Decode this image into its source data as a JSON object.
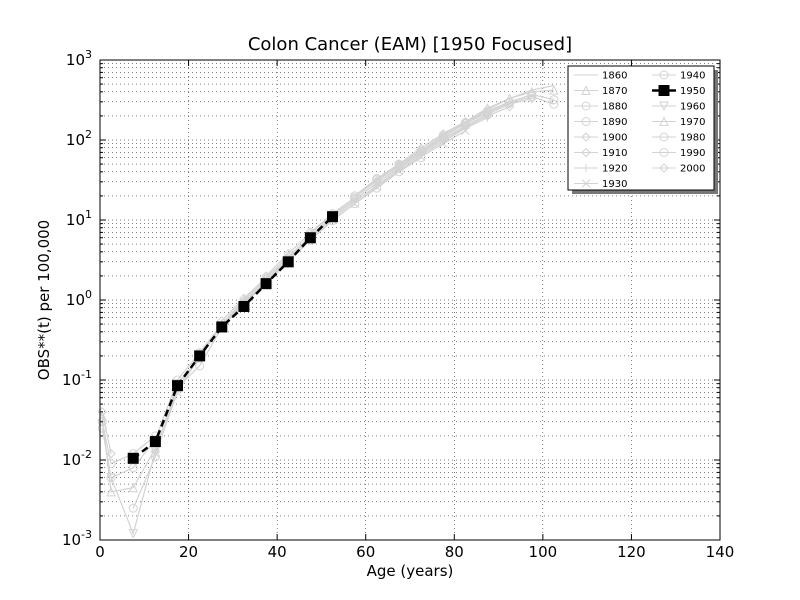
{
  "chart_data": {
    "type": "line",
    "title": "Colon Cancer (EAM) [1950 Focused]",
    "xlabel": "Age (years)",
    "ylabel": "OBS**(t) per 100,000",
    "xlim": [
      0,
      140
    ],
    "ylim": [
      0.001,
      1000
    ],
    "yscale": "log",
    "grid": true,
    "legend_position": "top-right",
    "x_ticks": [
      "0",
      "20",
      "40",
      "60",
      "80",
      "100",
      "120",
      "140"
    ],
    "y_ticks": [
      {
        "base": "10",
        "exp": "-3"
      },
      {
        "base": "10",
        "exp": "-2"
      },
      {
        "base": "10",
        "exp": "-1"
      },
      {
        "base": "10",
        "exp": "0"
      },
      {
        "base": "10",
        "exp": "1"
      },
      {
        "base": "10",
        "exp": "2"
      },
      {
        "base": "10",
        "exp": "3"
      }
    ],
    "focus_color": "#000000",
    "background_color": "#d3d3d3",
    "series": [
      {
        "name": "1860",
        "focused": false,
        "x": [
          77.5,
          82.5,
          87.5,
          92.5,
          97.5,
          102.5
        ],
        "y": [
          120,
          170,
          240,
          330,
          420,
          480
        ]
      },
      {
        "name": "1870",
        "focused": false,
        "x": [
          67.5,
          72.5,
          77.5,
          82.5,
          87.5,
          92.5,
          97.5,
          102.5
        ],
        "y": [
          50,
          80,
          120,
          170,
          250,
          330,
          400,
          420
        ]
      },
      {
        "name": "1880",
        "focused": false,
        "x": [
          57.5,
          62.5,
          67.5,
          72.5,
          77.5,
          82.5,
          87.5,
          92.5,
          97.5,
          102.5
        ],
        "y": [
          20,
          33,
          50,
          75,
          115,
          165,
          230,
          300,
          370,
          320
        ]
      },
      {
        "name": "1890",
        "focused": false,
        "x": [
          47.5,
          52.5,
          57.5,
          62.5,
          67.5,
          72.5,
          77.5,
          82.5,
          87.5,
          92.5,
          97.5,
          102.5
        ],
        "y": [
          7.0,
          12,
          19,
          32,
          48,
          72,
          110,
          160,
          220,
          290,
          350,
          280
        ]
      },
      {
        "name": "1900",
        "focused": false,
        "x": [
          37.5,
          42.5,
          47.5,
          52.5,
          57.5,
          62.5,
          67.5,
          72.5,
          77.5,
          82.5,
          87.5,
          92.5,
          97.5
        ],
        "y": [
          2.0,
          3.8,
          6.8,
          11.5,
          19,
          31,
          47,
          70,
          105,
          150,
          210,
          280,
          330
        ]
      },
      {
        "name": "1910",
        "focused": false,
        "x": [
          27.5,
          32.5,
          37.5,
          42.5,
          47.5,
          52.5,
          57.5,
          62.5,
          67.5,
          72.5,
          77.5,
          82.5,
          87.5,
          92.5
        ],
        "y": [
          0.55,
          1.05,
          1.9,
          3.5,
          6.3,
          11,
          18,
          29,
          45,
          68,
          100,
          145,
          200,
          260
        ]
      },
      {
        "name": "1920",
        "focused": false,
        "x": [
          22.5,
          27.5,
          32.5,
          37.5,
          42.5,
          47.5,
          52.5,
          57.5,
          62.5,
          67.5,
          72.5,
          77.5,
          82.5,
          87.5
        ],
        "y": [
          0.22,
          0.5,
          1.0,
          1.8,
          3.3,
          6.0,
          10.5,
          17,
          27,
          43,
          65,
          95,
          140,
          190
        ]
      },
      {
        "name": "1930",
        "focused": false,
        "x": [
          12.5,
          17.5,
          22.5,
          27.5,
          32.5,
          37.5,
          42.5,
          47.5,
          52.5,
          57.5,
          62.5,
          67.5,
          72.5,
          77.5,
          82.5
        ],
        "y": [
          0.012,
          0.07,
          0.2,
          0.48,
          0.95,
          1.7,
          3.1,
          5.7,
          10,
          16,
          26,
          41,
          62,
          90,
          130
        ]
      },
      {
        "name": "1940",
        "focused": false,
        "x": [
          7.5,
          12.5,
          17.5,
          22.5,
          27.5,
          32.5,
          37.5,
          42.5,
          47.5,
          52.5,
          57.5,
          62.5,
          67.5,
          72.5
        ],
        "y": [
          0.0025,
          0.011,
          0.08,
          0.15,
          0.45,
          0.9,
          1.6,
          3.0,
          5.6,
          9.8,
          16,
          25,
          40,
          60
        ]
      },
      {
        "name": "1950",
        "focused": true,
        "x": [
          7.5,
          12.5,
          17.5,
          22.5,
          27.5,
          32.5,
          37.5,
          42.5,
          47.5,
          52.5
        ],
        "y": [
          0.0105,
          0.017,
          0.085,
          0.2,
          0.46,
          0.83,
          1.6,
          3.0,
          6.0,
          11
        ]
      },
      {
        "name": "1960",
        "focused": false,
        "x": [
          2.5,
          7.5,
          12.5,
          17.5,
          22.5,
          27.5,
          32.5,
          37.5,
          42.5
        ],
        "y": [
          0.006,
          0.0012,
          0.013,
          0.09,
          0.19,
          0.48,
          0.9,
          1.7,
          3.2
        ]
      },
      {
        "name": "1970",
        "focused": false,
        "x": [
          0.5,
          2.5,
          7.5,
          12.5,
          17.5,
          22.5,
          27.5,
          32.5
        ],
        "y": [
          0.035,
          0.004,
          0.0045,
          0.014,
          0.08,
          0.2,
          0.5,
          1.0
        ]
      },
      {
        "name": "1980",
        "focused": false,
        "x": [
          0.5,
          2.5,
          7.5,
          12.5,
          17.5,
          22.5
        ],
        "y": [
          0.025,
          0.006,
          0.008,
          0.018,
          0.1,
          0.22
        ]
      },
      {
        "name": "1990",
        "focused": false,
        "x": [
          0.5,
          2.5,
          7.5,
          12.5
        ],
        "y": [
          0.03,
          0.009,
          0.012,
          0.02
        ]
      },
      {
        "name": "2000",
        "focused": false,
        "x": [
          0.5,
          2.5
        ],
        "y": [
          0.04,
          0.012
        ]
      }
    ]
  }
}
